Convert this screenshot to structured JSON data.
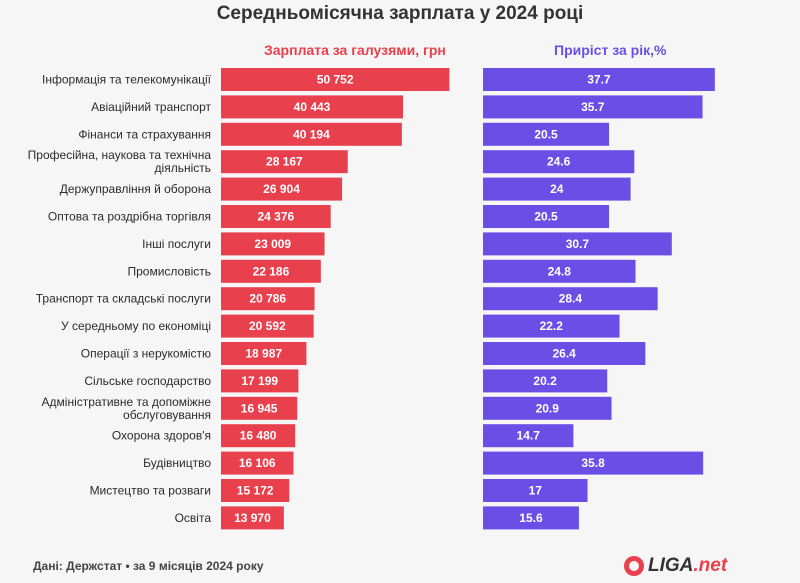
{
  "title": "Середньомісячна зарплата у 2024 році",
  "footer": "Дані: Держстат • за 9 місяців 2024 року",
  "logo": {
    "brand": "LIGA",
    "tld": ".net"
  },
  "chart_data": [
    {
      "type": "bar",
      "orientation": "horizontal",
      "title": "Зарплата за галузями, грн",
      "color": "#e8404c",
      "categories": [
        "Інформація та телекомунікації",
        "Авіаційний транспорт",
        "Фінанси та страхування",
        "Професійна, наукова та технічна діяльність",
        "Держуправління й оборона",
        "Оптова та роздрібна торгівля",
        "Інші послуги",
        "Промисловість",
        "Транспорт та складські послуги",
        "У середньому по економіці",
        "Операції з нерукомістю",
        "Сільське господарство",
        "Адміністративне та допоміжне обслуговування",
        "Охорона здоров'я",
        "Будівництво",
        "Мистецтво та розваги",
        "Освіта"
      ],
      "values": [
        50752,
        40443,
        40194,
        28167,
        26904,
        24376,
        23009,
        22186,
        20786,
        20592,
        18987,
        17199,
        16945,
        16480,
        16106,
        15172,
        13970
      ],
      "labels": [
        "50 752",
        "40 443",
        "40 194",
        "28 167",
        "26 904",
        "24 376",
        "23 009",
        "22 186",
        "20 786",
        "20 592",
        "18 987",
        "17 199",
        "16 945",
        "16 480",
        "16 106",
        "15 172",
        "13 970"
      ]
    },
    {
      "type": "bar",
      "orientation": "horizontal",
      "title": "Приріст за рік,%",
      "color": "#6a4fe6",
      "values": [
        37.7,
        35.7,
        20.5,
        24.6,
        24,
        20.5,
        30.7,
        24.8,
        28.4,
        22.2,
        26.4,
        20.2,
        20.9,
        14.7,
        35.8,
        17,
        15.6
      ],
      "labels": [
        "37.7",
        "35.7",
        "20.5",
        "24.6",
        "24",
        "20.5",
        "30.7",
        "24.8",
        "28.4",
        "22.2",
        "26.4",
        "20.2",
        "20.9",
        "14.7",
        "35.8",
        "17",
        "15.6"
      ]
    }
  ]
}
